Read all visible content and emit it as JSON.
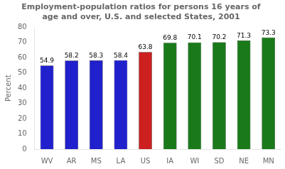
{
  "chart_data": {
    "type": "bar",
    "title": "Employment-population ratios for persons 16 years of\nage and over, U.S. and selected States, 2001",
    "ylabel": "Percent",
    "categories": [
      "WV",
      "AR",
      "MS",
      "LA",
      "US",
      "IA",
      "WI",
      "SD",
      "NE",
      "MN"
    ],
    "values": [
      54.9,
      58.2,
      58.3,
      58.4,
      63.8,
      69.8,
      70.1,
      70.2,
      71.3,
      73.3
    ],
    "colors": [
      "#2020cc",
      "#2020cc",
      "#2020cc",
      "#2020cc",
      "#cc2020",
      "#1a7a1a",
      "#1a7a1a",
      "#1a7a1a",
      "#1a7a1a",
      "#1a7a1a"
    ],
    "ylim": [
      0,
      80
    ],
    "yticks": [
      0,
      10,
      20,
      30,
      40,
      50,
      60,
      70,
      80
    ],
    "data_labels": true,
    "grid": false
  }
}
